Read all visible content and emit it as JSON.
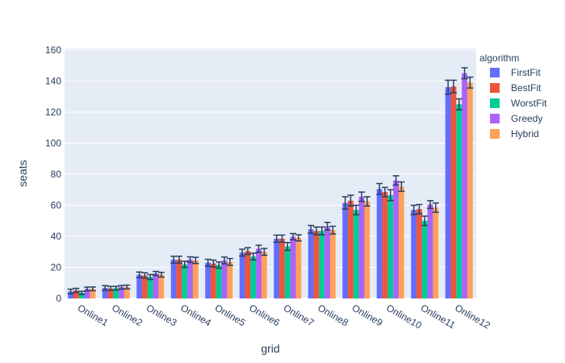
{
  "chart_data": {
    "type": "bar",
    "xlabel": "grid",
    "ylabel": "seats",
    "ylim": [
      0,
      161
    ],
    "yticks": [
      0,
      20,
      40,
      60,
      80,
      100,
      120,
      140,
      160
    ],
    "grid": true,
    "legend_title": "algorithm",
    "legend_position": "top-right",
    "categories": [
      "Online1",
      "Online2",
      "Online3",
      "Online4",
      "Online5",
      "Online6",
      "Online7",
      "Online8",
      "Online9",
      "Online10",
      "Online11",
      "Online12"
    ],
    "series": [
      {
        "name": "FirstFit",
        "color": "#636efa",
        "values": [
          4.5,
          6.8,
          15.2,
          25,
          23,
          29.5,
          38.5,
          44.5,
          61.5,
          70.5,
          57,
          136
        ],
        "errors": [
          1.5,
          1.5,
          1.8,
          2.2,
          2.2,
          2.2,
          2.3,
          2.5,
          4,
          3.5,
          3,
          4.5
        ]
      },
      {
        "name": "BestFit",
        "color": "#ef553b",
        "values": [
          5.2,
          6.5,
          14.8,
          25,
          22.5,
          30.5,
          38.5,
          43.5,
          63,
          68.5,
          57.5,
          136.5
        ],
        "errors": [
          1.3,
          1.3,
          1.7,
          2.2,
          2.2,
          2.2,
          2.3,
          2.5,
          3.5,
          3,
          3,
          4
        ]
      },
      {
        "name": "WorstFit",
        "color": "#00cc96",
        "values": [
          3.6,
          6.6,
          13.8,
          22,
          21.5,
          27,
          33.5,
          43.5,
          57,
          66.5,
          50,
          125
        ],
        "errors": [
          1,
          1.2,
          1.6,
          2,
          2,
          2.2,
          2.5,
          2.5,
          3,
          3.5,
          3,
          3.5
        ]
      },
      {
        "name": "Greedy",
        "color": "#ab63fa",
        "values": [
          6.1,
          7.2,
          16.1,
          25,
          24.5,
          32,
          39.8,
          46.5,
          65.5,
          76,
          60.5,
          145
        ],
        "errors": [
          1.2,
          1.2,
          1.3,
          1.8,
          2.2,
          2.3,
          2,
          2.5,
          3,
          3,
          2.5,
          3.5
        ]
      },
      {
        "name": "Hybrid",
        "color": "#ffa15a",
        "values": [
          6.2,
          7.4,
          15.3,
          24.5,
          23.5,
          30,
          39,
          44,
          62.5,
          72,
          58.5,
          139
        ],
        "errors": [
          1.2,
          1.2,
          1.5,
          2,
          2.2,
          2.2,
          2,
          2.5,
          3,
          3,
          3,
          3.5
        ]
      }
    ]
  }
}
